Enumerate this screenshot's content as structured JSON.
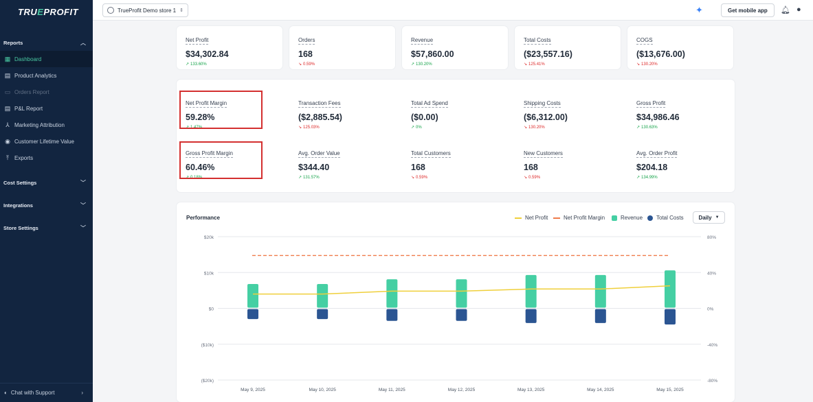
{
  "sidebar": {
    "logo_part1": "TRU",
    "logo_accent": "E",
    "logo_part2": "PROFIT",
    "sections": [
      {
        "label": "Reports"
      },
      {
        "label": "Cost Settings"
      },
      {
        "label": "Integrations"
      },
      {
        "label": "Store Settings"
      }
    ],
    "report_items": [
      {
        "label": "Dashboard",
        "icon": "grid-icon"
      },
      {
        "label": "Product Analytics",
        "icon": "chart-icon"
      },
      {
        "label": "Orders Report",
        "icon": "cart-icon"
      },
      {
        "label": "P&L Report",
        "icon": "document-icon"
      },
      {
        "label": "Marketing Attribution",
        "icon": "network-icon"
      },
      {
        "label": "Customer Lifetime Value",
        "icon": "user-circle-icon"
      },
      {
        "label": "Exports",
        "icon": "upload-icon"
      }
    ],
    "support": "Chat with Support"
  },
  "topbar": {
    "store": "TrueProfit Demo store 1",
    "mobile_button": "Get mobile app"
  },
  "summary": [
    {
      "label": "Net Profit",
      "value": "$34,302.84",
      "delta": "133.60%",
      "dir": "up"
    },
    {
      "label": "Orders",
      "value": "168",
      "delta": "0.59%",
      "dir": "down"
    },
    {
      "label": "Revenue",
      "value": "$57,860.00",
      "delta": "130.20%",
      "dir": "up"
    },
    {
      "label": "Total Costs",
      "value": "($23,557.16)",
      "delta": "125.41%",
      "dir": "down"
    },
    {
      "label": "COGS",
      "value": "($13,676.00)",
      "delta": "130.20%",
      "dir": "down"
    }
  ],
  "details_row1": [
    {
      "label": "Net Profit Margin",
      "value": "59.28%",
      "delta": "1.47%",
      "dir": "up"
    },
    {
      "label": "Transaction Fees",
      "value": "($2,885.54)",
      "delta": "125.03%",
      "dir": "down"
    },
    {
      "label": "Total Ad Spend",
      "value": "($0.00)",
      "delta": "0%",
      "dir": "up"
    },
    {
      "label": "Shipping Costs",
      "value": "($6,312.00)",
      "delta": "130.20%",
      "dir": "down"
    },
    {
      "label": "Gross Profit",
      "value": "$34,986.46",
      "delta": "130.63%",
      "dir": "up"
    }
  ],
  "details_row2": [
    {
      "label": "Gross Profit Margin",
      "value": "60.46%",
      "delta": "0.18%",
      "dir": "up"
    },
    {
      "label": "Avg. Order Value",
      "value": "$344.40",
      "delta": "131.57%",
      "dir": "up"
    },
    {
      "label": "Total Customers",
      "value": "168",
      "delta": "0.59%",
      "dir": "down"
    },
    {
      "label": "New Customers",
      "value": "168",
      "delta": "0.59%",
      "dir": "down"
    },
    {
      "label": "Avg. Order Profit",
      "value": "$204.18",
      "delta": "134.99%",
      "dir": "up"
    }
  ],
  "performance": {
    "title": "Performance",
    "legend": [
      "Net Profit",
      "Net Profit Margin",
      "Revenue",
      "Total Costs"
    ],
    "range_select": "Daily"
  },
  "chart_data": {
    "type": "bar",
    "categories": [
      "May 9, 2025",
      "May 10, 2025",
      "May 11, 2025",
      "May 12, 2025",
      "May 13, 2025",
      "May 14, 2025",
      "May 15, 2025"
    ],
    "series": [
      {
        "name": "Revenue",
        "kind": "bar",
        "axis": "left",
        "values": [
          6800,
          6800,
          8100,
          8100,
          9300,
          9300,
          10600
        ]
      },
      {
        "name": "Total Costs",
        "kind": "bar",
        "axis": "left",
        "values": [
          -2800,
          -2800,
          -3300,
          -3300,
          -3900,
          -3900,
          -4300
        ]
      },
      {
        "name": "Net Profit",
        "kind": "line",
        "axis": "left",
        "values": [
          4000,
          4000,
          4800,
          4800,
          5400,
          5400,
          6300
        ]
      },
      {
        "name": "Net Profit Margin",
        "kind": "dashed-line",
        "axis": "right",
        "values": [
          59,
          59,
          59,
          59,
          59,
          59,
          59
        ]
      }
    ],
    "y_left": {
      "ticks": [
        "$20k",
        "$10k",
        "$0",
        "($10k)",
        "($20k)"
      ],
      "range": [
        -20000,
        20000
      ]
    },
    "y_right": {
      "ticks": [
        "80%",
        "40%",
        "0%",
        "-40%",
        "-80%"
      ],
      "range": [
        -80,
        80
      ]
    },
    "colors": {
      "revenue": "#45cfa3",
      "costs": "#2b5592",
      "net_profit": "#efcf3a",
      "margin": "#ef7b4a"
    }
  }
}
